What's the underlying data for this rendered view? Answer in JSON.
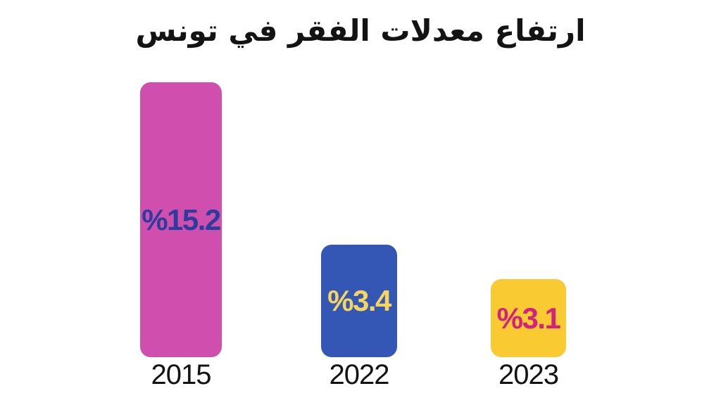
{
  "chart_data": {
    "type": "bar",
    "title": "ارتفاع معدلات الفقر في تونس",
    "categories": [
      "2015",
      "2022",
      "2023"
    ],
    "values": [
      15.2,
      3.4,
      3.1
    ],
    "unit": "%",
    "value_labels": [
      "%15.2",
      "%3.4",
      "%3.1"
    ],
    "bar_colors": [
      "#d04fae",
      "#3456b4",
      "#f9ca31"
    ],
    "value_label_colors": [
      "#2c3c9c",
      "#f6d55f",
      "#d3217f"
    ],
    "text_color": "#131313",
    "background": "#ffffff",
    "xlabel": "",
    "ylabel": "",
    "grid": false,
    "legend": false,
    "axes_visible": false,
    "direction": "rtl",
    "bars_proportional_to_values": false
  }
}
